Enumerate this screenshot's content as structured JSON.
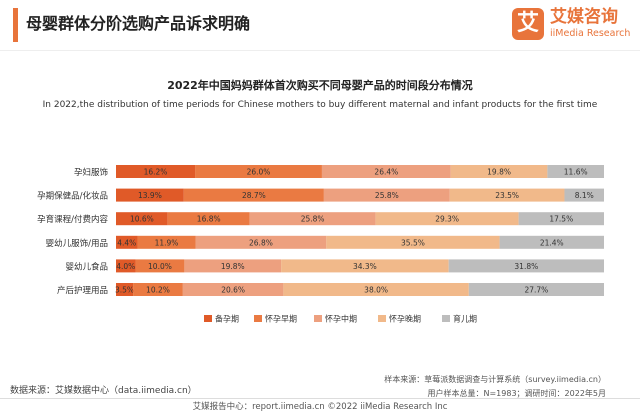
{
  "header": {
    "title": "母婴群体分阶选购产品诉求明确",
    "brand_mark": "艾",
    "brand_name": "艾媒咨询",
    "brand_en": "iiMedia Research",
    "accent_color": "#e8743b"
  },
  "footer": {
    "data_source": "数据来源：艾媒数据中心（data.iimedia.cn）",
    "sample_source": "样本来源：草莓派数据调查与计算系统（survey.iimedia.cn）",
    "sample_info": "用户样本总量：N=1983；调研时间：2022年5月",
    "copyright": "艾媒报告中心：report.iimedia.cn  ©2022  iiMedia Research  Inc"
  },
  "chart_data": {
    "type": "bar",
    "stacked": "100%",
    "orientation": "horizontal",
    "title": "2022年中国妈妈群体首次购买不同母婴产品的时间段分布情况",
    "subtitle": "In 2022,the distribution of time periods for Chinese mothers to buy different maternal and infant products for the first time",
    "categories": [
      "孕妇服饰",
      "孕期保健品/化妆品",
      "孕育课程/付费内容",
      "婴幼儿服饰/用品",
      "婴幼儿食品",
      "产后护理用品"
    ],
    "series": [
      {
        "name": "备孕期",
        "color": "#e05a28",
        "values": [
          16.2,
          13.9,
          10.6,
          4.4,
          4.0,
          3.5
        ]
      },
      {
        "name": "怀孕早期",
        "color": "#ea7a42",
        "values": [
          26.0,
          28.7,
          16.8,
          11.9,
          10.0,
          10.2
        ]
      },
      {
        "name": "怀孕中期",
        "color": "#eda07f",
        "values": [
          26.4,
          25.8,
          25.8,
          26.8,
          19.8,
          20.6
        ]
      },
      {
        "name": "怀孕晚期",
        "color": "#f1b98a",
        "values": [
          19.8,
          23.5,
          29.3,
          35.5,
          34.3,
          38.0
        ]
      },
      {
        "name": "育儿期",
        "color": "#bdbdbd",
        "values": [
          11.6,
          8.1,
          17.5,
          21.4,
          31.8,
          27.7
        ]
      }
    ],
    "unit": "%",
    "legend": "bottom",
    "grid": false
  }
}
